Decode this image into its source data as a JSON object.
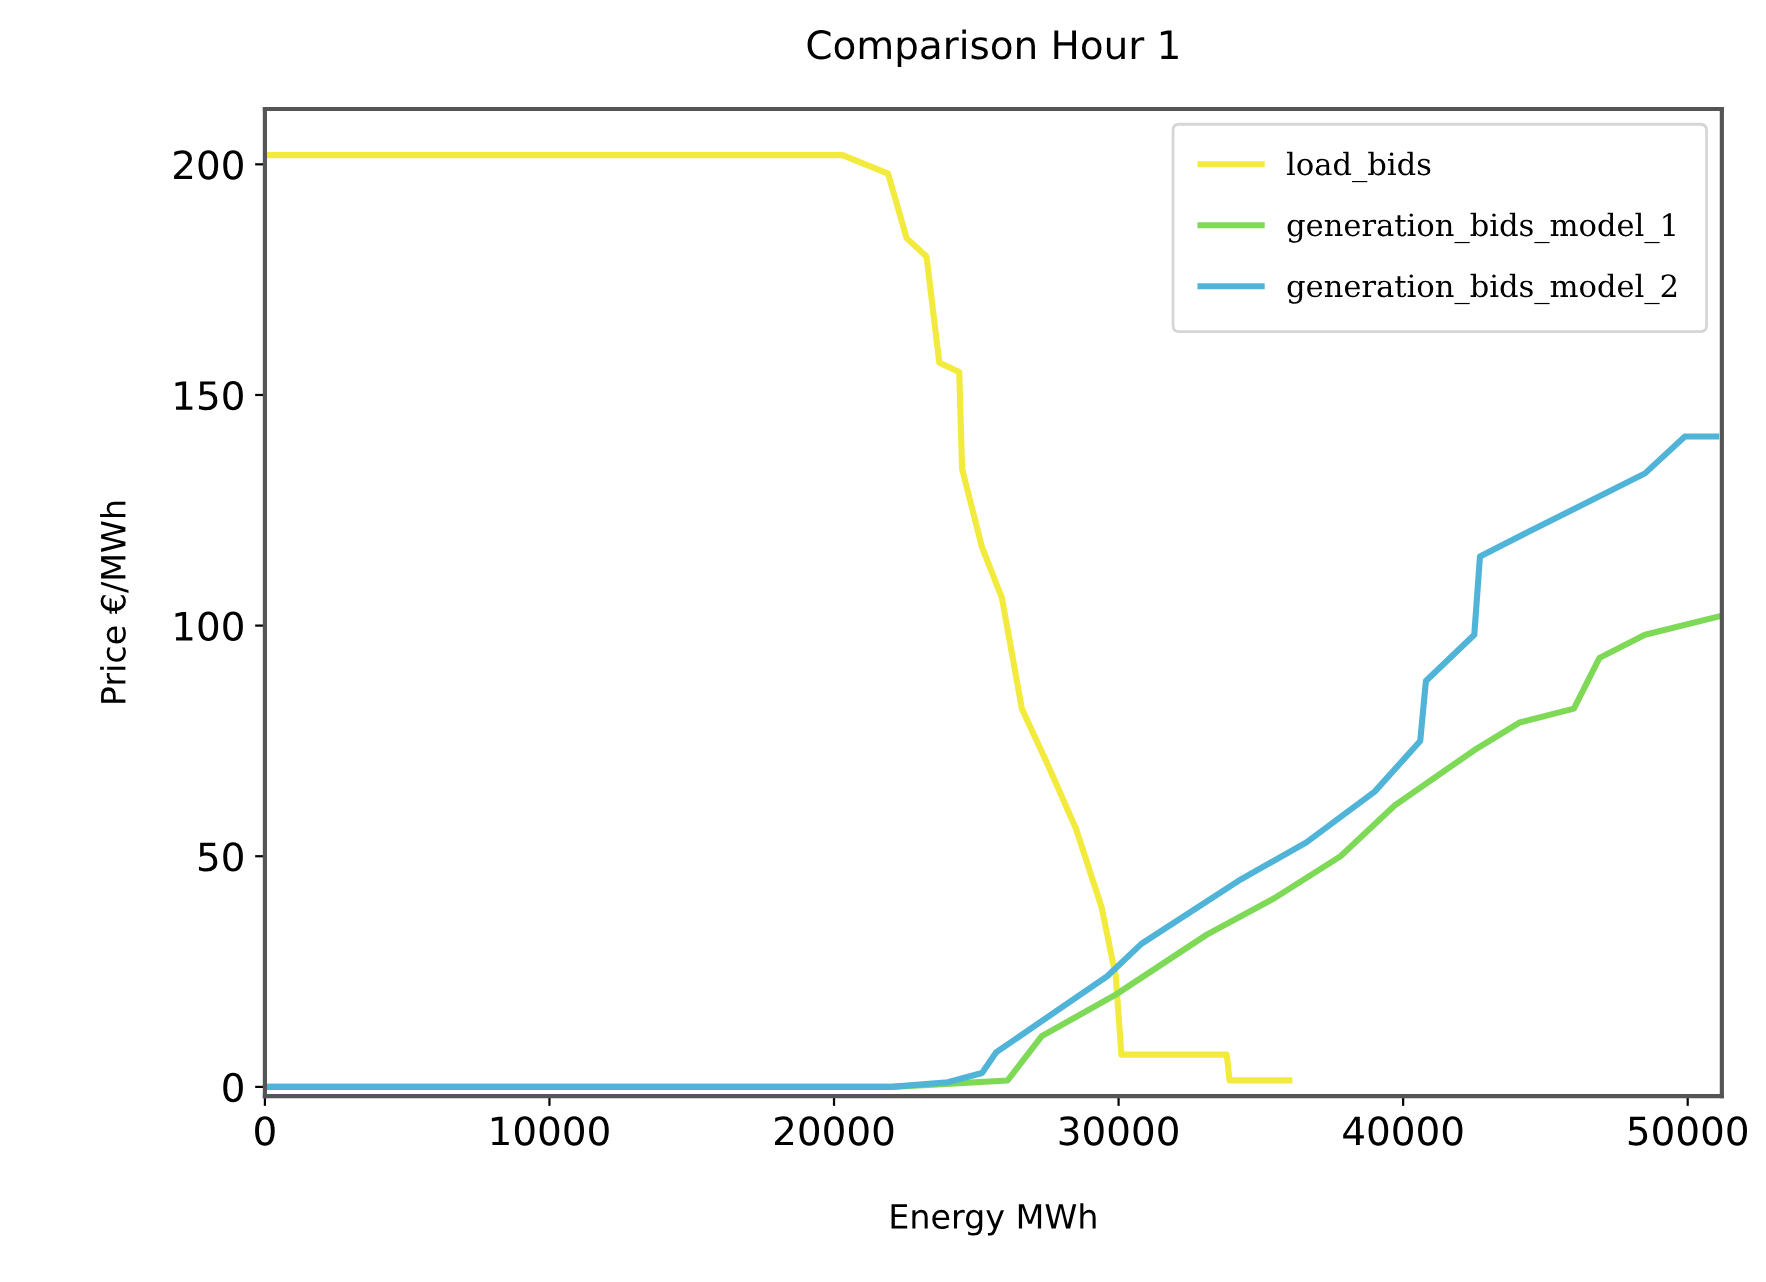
{
  "chart_data": {
    "type": "line",
    "title": "Comparison Hour 1",
    "xlabel": "Energy MWh",
    "ylabel": "Price €/MWh",
    "xlim": [
      0,
      51200
    ],
    "ylim": [
      -2,
      212
    ],
    "xticks": [
      0,
      10000,
      20000,
      30000,
      40000,
      50000
    ],
    "yticks": [
      0,
      50,
      100,
      150,
      200
    ],
    "grid": false,
    "legend": "top right",
    "marker": "none",
    "line_style": "solid",
    "series": [
      {
        "name": "load_bids",
        "color": "#f2ea3c",
        "x": [
          0,
          20300,
          21900,
          22550,
          23250,
          23700,
          24400,
          24500,
          25200,
          25900,
          26600,
          27500,
          28500,
          29400,
          29900,
          30100,
          33800,
          33900,
          36000
        ],
        "values": [
          202,
          202,
          198,
          184,
          180,
          157,
          155,
          134,
          117,
          106,
          82,
          70,
          56,
          39,
          24,
          7,
          7,
          1.4,
          1.4
        ]
      },
      {
        "name": "generation_bids_model_1",
        "color": "#7ed957",
        "x": [
          0,
          22000,
          23800,
          26100,
          27300,
          29900,
          33100,
          35500,
          37800,
          39700,
          42500,
          44100,
          46000,
          46900,
          48500,
          51100
        ],
        "values": [
          0,
          0,
          0.6,
          1.4,
          11,
          20,
          33,
          41,
          50,
          61,
          73,
          79,
          82,
          93,
          98,
          102
        ]
      },
      {
        "name": "generation_bids_model_2",
        "color": "#4fb4d8",
        "x": [
          0,
          22000,
          24000,
          25200,
          25700,
          29600,
          30800,
          34300,
          36600,
          39000,
          40600,
          40800,
          42500,
          42700,
          44300,
          48500,
          49900,
          51000
        ],
        "values": [
          0,
          0,
          1,
          3,
          7.5,
          24,
          31,
          45,
          53,
          64,
          75,
          88,
          98,
          115,
          120,
          133,
          141,
          141
        ]
      }
    ]
  }
}
